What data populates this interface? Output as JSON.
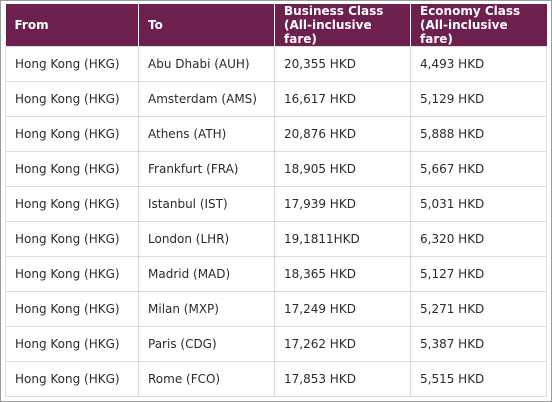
{
  "table": {
    "headers": [
      {
        "line1": "From",
        "line2": ""
      },
      {
        "line1": "To",
        "line2": ""
      },
      {
        "line1": "Business Class",
        "line2": "(All-inclusive fare)"
      },
      {
        "line1": "Economy Class",
        "line2": "(All-inclusive fare)"
      }
    ],
    "rows": [
      {
        "from": "Hong Kong (HKG)",
        "to": "Abu Dhabi (AUH)",
        "business": "20,355 HKD",
        "economy": "4,493 HKD"
      },
      {
        "from": "Hong Kong (HKG)",
        "to": "Amsterdam (AMS)",
        "business": "16,617 HKD",
        "economy": "5,129 HKD"
      },
      {
        "from": "Hong Kong (HKG)",
        "to": "Athens (ATH)",
        "business": "20,876 HKD",
        "economy": "5,888 HKD"
      },
      {
        "from": "Hong Kong (HKG)",
        "to": "Frankfurt (FRA)",
        "business": "18,905 HKD",
        "economy": "5,667 HKD"
      },
      {
        "from": "Hong Kong (HKG)",
        "to": "Istanbul (IST)",
        "business": "17,939 HKD",
        "economy": "5,031 HKD"
      },
      {
        "from": "Hong Kong (HKG)",
        "to": "London (LHR)",
        "business": "19,1811HKD",
        "economy": "6,320 HKD"
      },
      {
        "from": "Hong Kong (HKG)",
        "to": "Madrid (MAD)",
        "business": "18,365 HKD",
        "economy": "5,127 HKD"
      },
      {
        "from": "Hong Kong (HKG)",
        "to": "Milan (MXP)",
        "business": "17,249 HKD",
        "economy": "5,271 HKD"
      },
      {
        "from": "Hong Kong (HKG)",
        "to": "Paris (CDG)",
        "business": "17,262 HKD",
        "economy": "5,387 HKD"
      },
      {
        "from": "Hong Kong (HKG)",
        "to": "Rome (FCO)",
        "business": "17,853 HKD",
        "economy": "5,515 HKD"
      }
    ]
  }
}
